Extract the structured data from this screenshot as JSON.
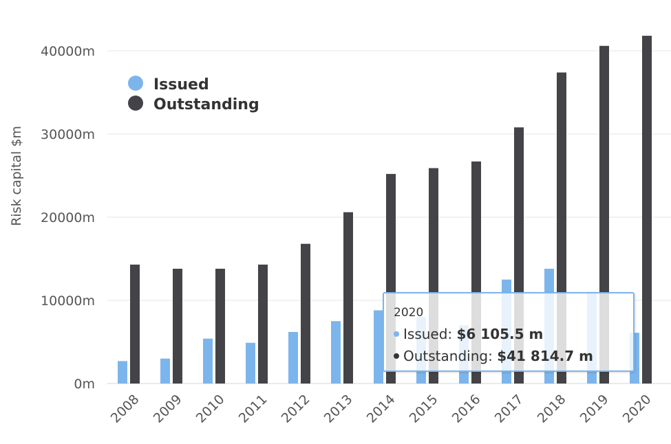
{
  "chart_data": {
    "type": "bar",
    "categories": [
      "2008",
      "2009",
      "2010",
      "2011",
      "2012",
      "2013",
      "2014",
      "2015",
      "2016",
      "2017",
      "2018",
      "2019",
      "2020"
    ],
    "series": [
      {
        "name": "Issued",
        "color": "#7cb5ec",
        "values": [
          2700,
          3000,
          5400,
          4900,
          6200,
          7500,
          8800,
          8000,
          7000,
          12500,
          13800,
          11000,
          6105.5
        ]
      },
      {
        "name": "Outstanding",
        "color": "#434348",
        "values": [
          14300,
          13800,
          13800,
          14300,
          16800,
          20600,
          25200,
          25900,
          26700,
          30800,
          37400,
          40600,
          41814.7
        ]
      }
    ],
    "ylabel": "Risk capital $m",
    "ylim": [
      0,
      40000
    ],
    "yticks": [
      "0m",
      "10000m",
      "20000m",
      "30000m",
      "40000m"
    ],
    "grid": true,
    "legend_position": "top-left",
    "tooltip": {
      "title": "2020",
      "issued_label": "Issued:",
      "issued_value": "$6 105.5 m",
      "outstanding_label": "Outstanding:",
      "outstanding_value": "$41 814.7 m"
    }
  }
}
